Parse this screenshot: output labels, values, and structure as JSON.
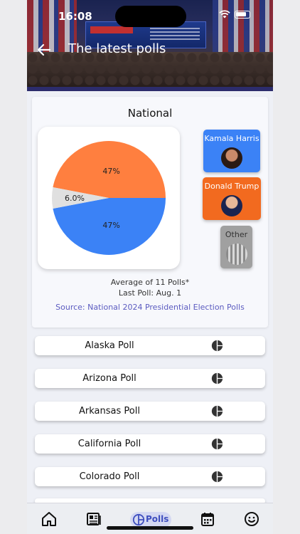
{
  "status_bar": {
    "time": "16:08"
  },
  "header": {
    "title": "The latest polls"
  },
  "national": {
    "title": "National",
    "average_text": "Average of 11 Polls*",
    "last_poll_text": "Last Poll: Aug. 1",
    "source_text": "Source: National 2024 Presidential Election Polls"
  },
  "chart_data": {
    "type": "pie",
    "labels": [
      "Kamala Harris",
      "Donald Trump",
      "Other"
    ],
    "values": [
      47,
      47,
      6.0
    ],
    "display_labels": [
      "47%",
      "47%",
      "6.0%"
    ],
    "colors": [
      "#3b82f6",
      "#ff7f3f",
      "#e0e0e0"
    ]
  },
  "candidates": [
    {
      "name": "Kamala Harris",
      "color": "#3b82f6"
    },
    {
      "name": "Donald Trump",
      "color": "#f26a1f"
    },
    {
      "name": "Other",
      "color": "#a0a0a0"
    }
  ],
  "polls": [
    {
      "label": "Alaska Poll"
    },
    {
      "label": "Arizona Poll"
    },
    {
      "label": "Arkansas Poll"
    },
    {
      "label": "California Poll"
    },
    {
      "label": "Colorado Poll"
    }
  ],
  "tabbar": {
    "active_label": "Polls",
    "icons": [
      "home-icon",
      "newspaper-icon",
      "polls-icon",
      "calendar-icon",
      "smiley-icon"
    ]
  }
}
